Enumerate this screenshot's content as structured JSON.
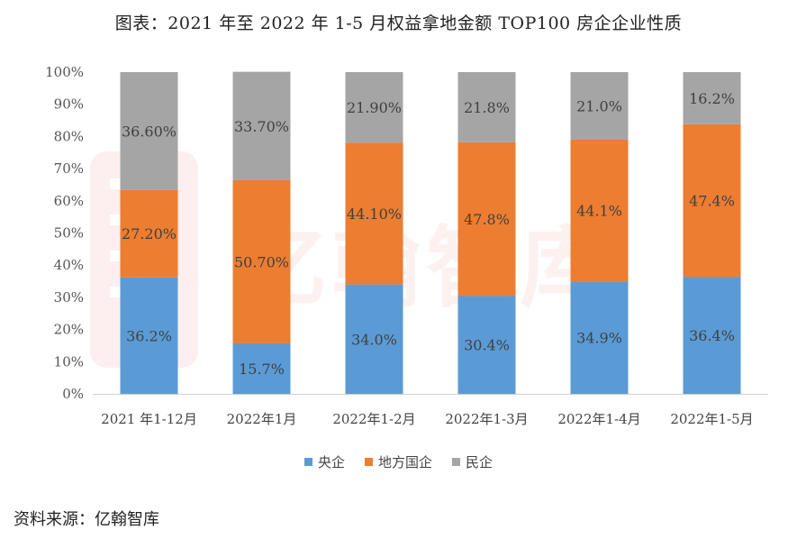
{
  "title": "图表：2021 年至 2022 年 1-5 月权益拿地金额 TOP100 房企企业性质",
  "source": "资料来源：亿翰智库",
  "watermark": "亿翰智库",
  "colors": {
    "central_soe": "#5b9bd5",
    "local_soe": "#ed7d31",
    "private": "#a5a5a5"
  },
  "chart_data": {
    "type": "bar",
    "stacked": true,
    "categories": [
      "2021 年1-12月",
      "2022年1月",
      "2022年1-2月",
      "2022年1-3月",
      "2022年1-4月",
      "2022年1-5月"
    ],
    "ylim": [
      0,
      100
    ],
    "yticks": [
      "0%",
      "10%",
      "20%",
      "30%",
      "40%",
      "50%",
      "60%",
      "70%",
      "80%",
      "90%",
      "100%"
    ],
    "legend_position": "bottom",
    "grid": false,
    "series": [
      {
        "name": "央企",
        "color": "#5b9bd5",
        "values": [
          36.2,
          15.7,
          34.0,
          30.4,
          34.9,
          36.4
        ],
        "labels": [
          "36.2%",
          "15.7%",
          "34.0%",
          "30.4%",
          "34.9%",
          "36.4%"
        ]
      },
      {
        "name": "地方国企",
        "color": "#ed7d31",
        "values": [
          27.2,
          50.7,
          44.1,
          47.8,
          44.1,
          47.4
        ],
        "labels": [
          "27.20%",
          "50.70%",
          "44.10%",
          "47.8%",
          "44.1%",
          "47.4%"
        ]
      },
      {
        "name": "民企",
        "color": "#a5a5a5",
        "values": [
          36.6,
          33.7,
          21.9,
          21.8,
          21.0,
          16.2
        ],
        "labels": [
          "36.60%",
          "33.70%",
          "21.90%",
          "21.8%",
          "21.0%",
          "16.2%"
        ]
      }
    ]
  }
}
